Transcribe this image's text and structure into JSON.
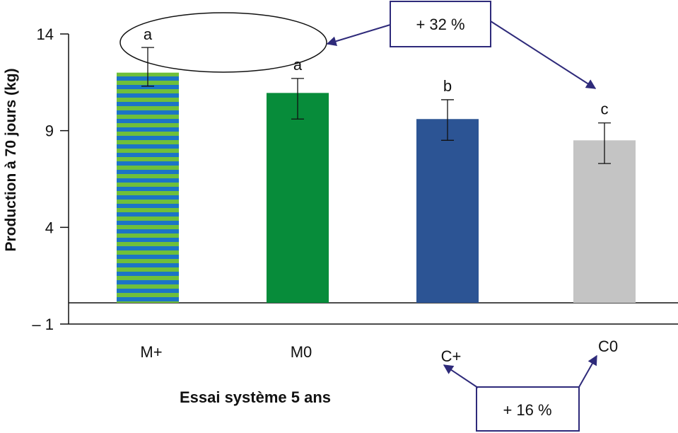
{
  "chart_data": {
    "type": "bar",
    "categories": [
      "M+",
      "M0",
      "C+",
      "C0"
    ],
    "values": [
      12.0,
      10.95,
      9.6,
      8.5
    ],
    "error_low": [
      11.3,
      9.6,
      8.5,
      7.3
    ],
    "error_high": [
      13.3,
      11.7,
      10.6,
      9.4
    ],
    "significance": [
      "a",
      "a",
      "b",
      "c"
    ],
    "colors": [
      "#2a6fc0",
      "#078c3a",
      "#2c5494",
      "#c4c4c4"
    ],
    "stripe_colors": [
      "#1c74c6",
      "#6fbf3a"
    ],
    "ylim": [
      -1,
      14
    ],
    "yticks": [
      "14",
      "9",
      "4",
      "– 1"
    ],
    "ylabel": "Production à 70 jours (kg)",
    "xlabel": "Essai système 5 ans",
    "grid": false,
    "annotations": {
      "top": "+ 32 %",
      "bottom": "+ 16 %"
    },
    "annotation_color": "#2e2a7a"
  }
}
